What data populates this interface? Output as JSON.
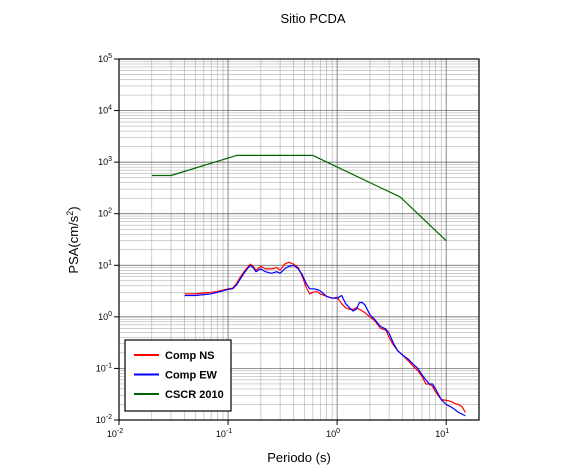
{
  "chart_data": {
    "type": "line",
    "title": "Sitio PCDA",
    "xlabel": "Periodo (s)",
    "ylabel_base": "PSA(cm/s",
    "ylabel_sup": "2",
    "ylabel_close": ")",
    "xscale": "log",
    "yscale": "log",
    "xlim": [
      0.01,
      20
    ],
    "ylim": [
      0.01,
      100000
    ],
    "grid": true,
    "legend_position": "bottom-left",
    "x_ticks": [
      {
        "value": 0.01,
        "base": "10",
        "exp": "-2"
      },
      {
        "value": 0.1,
        "base": "10",
        "exp": "-1"
      },
      {
        "value": 1,
        "base": "10",
        "exp": "0"
      },
      {
        "value": 10,
        "base": "10",
        "exp": "1"
      }
    ],
    "y_ticks": [
      {
        "value": 0.01,
        "base": "10",
        "exp": "-2"
      },
      {
        "value": 0.1,
        "base": "10",
        "exp": "-1"
      },
      {
        "value": 1,
        "base": "10",
        "exp": "0"
      },
      {
        "value": 10,
        "base": "10",
        "exp": "1"
      },
      {
        "value": 100,
        "base": "10",
        "exp": "2"
      },
      {
        "value": 1000,
        "base": "10",
        "exp": "3"
      },
      {
        "value": 10000,
        "base": "10",
        "exp": "4"
      },
      {
        "value": 100000,
        "base": "10",
        "exp": "5"
      }
    ],
    "series": [
      {
        "name": "Comp NS",
        "color": "#ff0000",
        "points": [
          [
            0.04,
            2.8
          ],
          [
            0.05,
            2.8
          ],
          [
            0.06,
            2.9
          ],
          [
            0.07,
            3.0
          ],
          [
            0.08,
            3.1
          ],
          [
            0.09,
            3.3
          ],
          [
            0.1,
            3.5
          ],
          [
            0.11,
            3.6
          ],
          [
            0.12,
            4.5
          ],
          [
            0.13,
            6.0
          ],
          [
            0.14,
            7.5
          ],
          [
            0.15,
            9.0
          ],
          [
            0.16,
            10.5
          ],
          [
            0.17,
            9.5
          ],
          [
            0.18,
            8.0
          ],
          [
            0.2,
            9.5
          ],
          [
            0.22,
            8.5
          ],
          [
            0.25,
            8.5
          ],
          [
            0.28,
            9.0
          ],
          [
            0.3,
            8.0
          ],
          [
            0.33,
            10.5
          ],
          [
            0.36,
            11.5
          ],
          [
            0.4,
            10.5
          ],
          [
            0.44,
            9.0
          ],
          [
            0.48,
            6.0
          ],
          [
            0.52,
            3.8
          ],
          [
            0.56,
            2.8
          ],
          [
            0.6,
            3.0
          ],
          [
            0.65,
            3.1
          ],
          [
            0.7,
            2.8
          ],
          [
            0.8,
            2.5
          ],
          [
            0.9,
            2.3
          ],
          [
            1.0,
            2.4
          ],
          [
            1.1,
            1.8
          ],
          [
            1.2,
            1.5
          ],
          [
            1.3,
            1.4
          ],
          [
            1.4,
            1.4
          ],
          [
            1.5,
            1.5
          ],
          [
            1.6,
            1.4
          ],
          [
            1.7,
            1.3
          ],
          [
            1.8,
            1.2
          ],
          [
            2.0,
            1.0
          ],
          [
            2.2,
            0.85
          ],
          [
            2.5,
            0.6
          ],
          [
            2.8,
            0.55
          ],
          [
            3.0,
            0.4
          ],
          [
            3.3,
            0.28
          ],
          [
            3.6,
            0.22
          ],
          [
            4.0,
            0.18
          ],
          [
            4.5,
            0.14
          ],
          [
            5.0,
            0.11
          ],
          [
            5.5,
            0.09
          ],
          [
            6.0,
            0.07
          ],
          [
            6.5,
            0.05
          ],
          [
            7.0,
            0.05
          ],
          [
            7.5,
            0.045
          ],
          [
            8.0,
            0.035
          ],
          [
            9.0,
            0.025
          ],
          [
            10.0,
            0.024
          ],
          [
            11.0,
            0.023
          ],
          [
            12.0,
            0.021
          ],
          [
            13.0,
            0.02
          ],
          [
            14.0,
            0.018
          ],
          [
            15.0,
            0.014
          ]
        ]
      },
      {
        "name": "Comp EW",
        "color": "#0000ff",
        "points": [
          [
            0.04,
            2.6
          ],
          [
            0.05,
            2.6
          ],
          [
            0.06,
            2.7
          ],
          [
            0.07,
            2.8
          ],
          [
            0.08,
            3.0
          ],
          [
            0.09,
            3.2
          ],
          [
            0.1,
            3.4
          ],
          [
            0.11,
            3.5
          ],
          [
            0.12,
            4.2
          ],
          [
            0.13,
            5.5
          ],
          [
            0.14,
            7.0
          ],
          [
            0.15,
            8.5
          ],
          [
            0.16,
            10.0
          ],
          [
            0.17,
            9.0
          ],
          [
            0.18,
            7.5
          ],
          [
            0.2,
            8.5
          ],
          [
            0.22,
            7.5
          ],
          [
            0.25,
            7.0
          ],
          [
            0.28,
            7.5
          ],
          [
            0.3,
            7.0
          ],
          [
            0.33,
            8.5
          ],
          [
            0.36,
            9.5
          ],
          [
            0.4,
            10.0
          ],
          [
            0.44,
            8.5
          ],
          [
            0.48,
            6.5
          ],
          [
            0.52,
            4.5
          ],
          [
            0.56,
            3.5
          ],
          [
            0.6,
            3.5
          ],
          [
            0.65,
            3.4
          ],
          [
            0.7,
            3.2
          ],
          [
            0.8,
            2.5
          ],
          [
            0.9,
            2.3
          ],
          [
            1.0,
            2.3
          ],
          [
            1.1,
            2.6
          ],
          [
            1.2,
            1.8
          ],
          [
            1.3,
            1.5
          ],
          [
            1.4,
            1.3
          ],
          [
            1.5,
            1.4
          ],
          [
            1.6,
            1.9
          ],
          [
            1.7,
            1.9
          ],
          [
            1.8,
            1.7
          ],
          [
            2.0,
            1.1
          ],
          [
            2.2,
            0.9
          ],
          [
            2.5,
            0.65
          ],
          [
            2.8,
            0.58
          ],
          [
            3.0,
            0.48
          ],
          [
            3.3,
            0.3
          ],
          [
            3.6,
            0.22
          ],
          [
            4.0,
            0.18
          ],
          [
            4.5,
            0.15
          ],
          [
            5.0,
            0.12
          ],
          [
            5.5,
            0.1
          ],
          [
            6.0,
            0.075
          ],
          [
            6.5,
            0.06
          ],
          [
            7.0,
            0.05
          ],
          [
            7.5,
            0.05
          ],
          [
            8.0,
            0.04
          ],
          [
            9.0,
            0.025
          ],
          [
            10.0,
            0.02
          ],
          [
            11.0,
            0.018
          ],
          [
            12.0,
            0.016
          ],
          [
            13.0,
            0.014
          ],
          [
            14.0,
            0.013
          ],
          [
            15.0,
            0.012
          ]
        ]
      },
      {
        "name": "CSCR 2010",
        "color": "#006400",
        "points": [
          [
            0.02,
            550
          ],
          [
            0.03,
            550
          ],
          [
            0.12,
            1350
          ],
          [
            0.6,
            1350
          ],
          [
            3.8,
            210
          ],
          [
            10.0,
            30
          ]
        ]
      }
    ]
  }
}
